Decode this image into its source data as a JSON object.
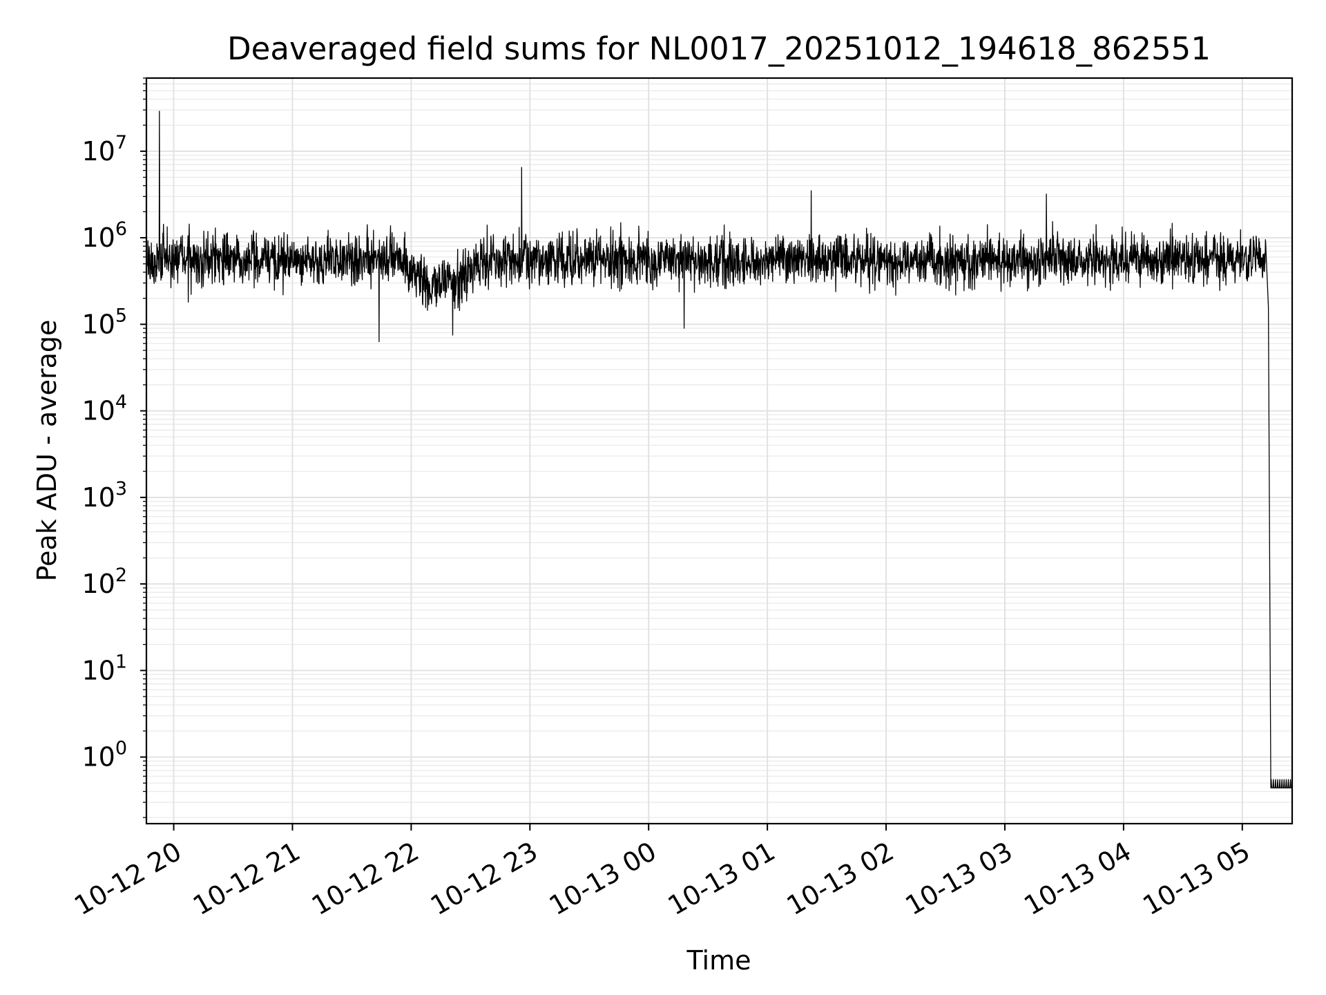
{
  "chart_data": {
    "type": "line",
    "title": "Deaveraged field sums for NL0017_20251012_194618_862551",
    "xlabel": "Time",
    "ylabel": "Peak ADU - average",
    "yscale": "log",
    "ylim": [
      0.17,
      70000000
    ],
    "x_range_hours": [
      -0.23,
      9.42
    ],
    "x_ticks": [
      {
        "label": "10-12 20",
        "hour": 0
      },
      {
        "label": "10-12 21",
        "hour": 1
      },
      {
        "label": "10-12 22",
        "hour": 2
      },
      {
        "label": "10-12 23",
        "hour": 3
      },
      {
        "label": "10-13 00",
        "hour": 4
      },
      {
        "label": "10-13 01",
        "hour": 5
      },
      {
        "label": "10-13 02",
        "hour": 6
      },
      {
        "label": "10-13 03",
        "hour": 7
      },
      {
        "label": "10-13 04",
        "hour": 8
      },
      {
        "label": "10-13 05",
        "hour": 9
      }
    ],
    "y_ticks": [
      {
        "base": "10",
        "exp": "0",
        "value": 1
      },
      {
        "base": "10",
        "exp": "1",
        "value": 10
      },
      {
        "base": "10",
        "exp": "2",
        "value": 100
      },
      {
        "base": "10",
        "exp": "3",
        "value": 1000
      },
      {
        "base": "10",
        "exp": "4",
        "value": 10000
      },
      {
        "base": "10",
        "exp": "5",
        "value": 100000
      },
      {
        "base": "10",
        "exp": "6",
        "value": 1000000
      },
      {
        "base": "10",
        "exp": "7",
        "value": 10000000
      }
    ],
    "grid": true,
    "series": [
      {
        "name": "Peak ADU - average",
        "color": "#000000",
        "x_start_hour": -0.22,
        "x_end_hour": 9.42,
        "typical_value": 550000,
        "spikes": [
          {
            "hour": -0.12,
            "value": 29000000
          },
          {
            "hour": 2.93,
            "value": 6500000
          },
          {
            "hour": 5.37,
            "value": 3500000
          },
          {
            "hour": 7.35,
            "value": 3200000
          },
          {
            "hour": 1.73,
            "value": 63000
          },
          {
            "hour": 2.35,
            "value": 75000
          },
          {
            "hour": 4.3,
            "value": 90000
          }
        ],
        "dip_region_hours": [
          1.9,
          2.6
        ],
        "drop_hour": 9.2,
        "floor_value": 0.44
      }
    ]
  }
}
